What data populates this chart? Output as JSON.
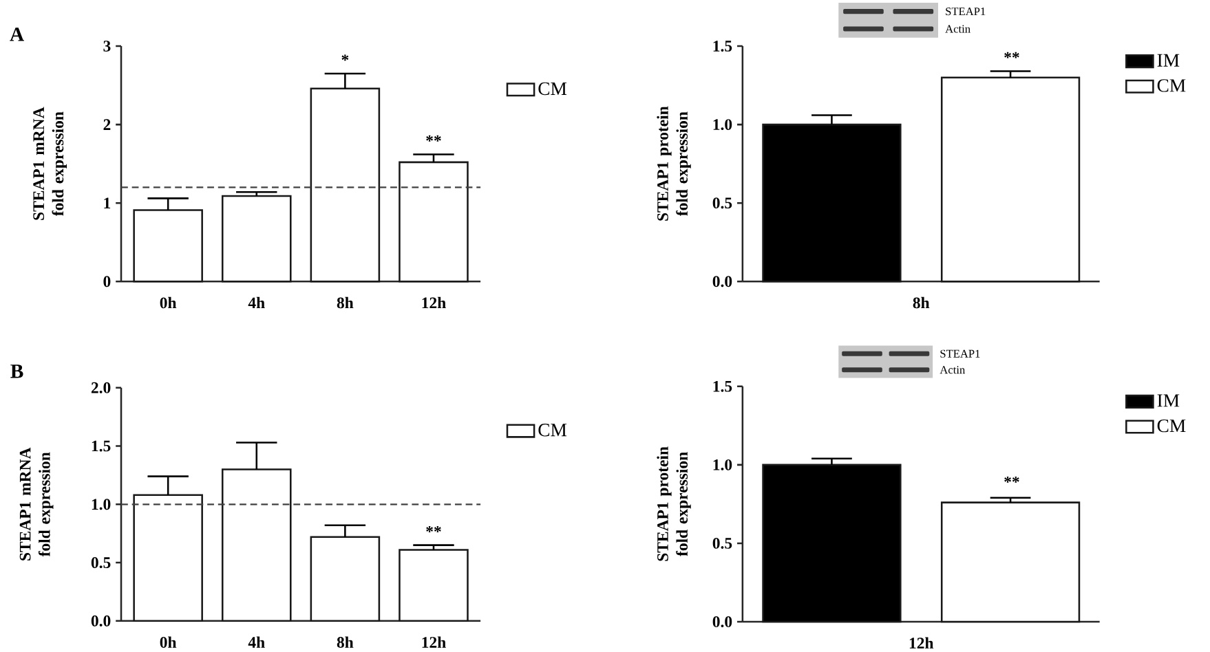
{
  "chart_data": [
    {
      "type": "bar",
      "title": "A",
      "ylabel": "STEAP1 mRNA fold expression",
      "categories": [
        "0h",
        "4h",
        "8h",
        "12h"
      ],
      "series": [
        {
          "name": "CM",
          "color": "#ffffff",
          "values": [
            0.91,
            1.09,
            2.46,
            1.52
          ],
          "errors": [
            [
              0.91,
              1.06
            ],
            [
              1.09,
              1.14
            ],
            [
              2.46,
              2.65
            ],
            [
              1.52,
              1.62
            ]
          ]
        }
      ],
      "ylim": [
        0,
        3
      ],
      "yticks": [
        0,
        1,
        2,
        3
      ],
      "ref_lines": [
        {
          "axis": "y",
          "value": 1.2,
          "line_style": "dashed",
          "color": "#404040"
        }
      ],
      "annotations": [
        {
          "text": "*",
          "x": "8h",
          "y": 2.65
        },
        {
          "text": "**",
          "x": "12h",
          "y": 1.62
        }
      ],
      "legend": "top right"
    },
    {
      "type": "bar",
      "ylabel": "STEAP1 protein fold expression",
      "categories": [
        "8h"
      ],
      "series": [
        {
          "name": "IM",
          "color": "#000000",
          "values": [
            1.0
          ],
          "errors": [
            [
              1.0,
              1.06
            ]
          ]
        },
        {
          "name": "CM",
          "color": "#ffffff",
          "values": [
            1.3
          ],
          "errors": [
            [
              1.3,
              1.34
            ]
          ]
        }
      ],
      "ylim": [
        0,
        1.5
      ],
      "yticks": [
        {
          "value": 0,
          "label": "0.0"
        },
        {
          "value": 0.5,
          "label": "0.5"
        },
        {
          "value": 1,
          "label": "1.0"
        },
        {
          "value": 1.5,
          "label": "1.5"
        }
      ],
      "annotations": [
        "STEAP1",
        "Actin",
        "**"
      ],
      "legend": "top right"
    },
    {
      "type": "bar",
      "title": "B",
      "ylabel": "STEAP1 mRNA fold expression",
      "categories": [
        "0h",
        "4h",
        "8h",
        "12h"
      ],
      "series": [
        {
          "name": "CM",
          "color": "#ffffff",
          "values": [
            1.08,
            1.3,
            0.72,
            0.61
          ],
          "errors": [
            [
              1.08,
              1.24
            ],
            [
              1.3,
              1.53
            ],
            [
              0.72,
              0.82
            ],
            [
              0.61,
              0.65
            ]
          ]
        }
      ],
      "ylim": [
        0,
        2
      ],
      "yticks": [
        {
          "value": 0,
          "label": "0.0"
        },
        {
          "value": 0.5,
          "label": "0.5"
        },
        {
          "value": 1,
          "label": "1.0"
        },
        {
          "value": 1.5,
          "label": "1.5"
        },
        {
          "value": 2,
          "label": "2.0"
        }
      ],
      "ref_lines": [
        {
          "axis": "y",
          "value": 1.0,
          "line_style": "dashed",
          "color": "#404040"
        }
      ],
      "annotations": [
        {
          "text": "**",
          "x": "12h",
          "y": 0.65
        }
      ],
      "legend": "top right"
    },
    {
      "type": "bar",
      "ylabel": "STEAP1 protein fold expression",
      "categories": [
        "12h"
      ],
      "series": [
        {
          "name": "IM",
          "color": "#000000",
          "values": [
            1.0
          ],
          "errors": [
            [
              1.0,
              1.04
            ]
          ]
        },
        {
          "name": "CM",
          "color": "#ffffff",
          "values": [
            0.76
          ],
          "errors": [
            [
              0.76,
              0.79
            ]
          ]
        }
      ],
      "ylim": [
        0,
        1.5
      ],
      "yticks": [
        {
          "value": 0,
          "label": "0.0"
        },
        {
          "value": 0.5,
          "label": "0.5"
        },
        {
          "value": 1,
          "label": "1.0"
        },
        {
          "value": 1.5,
          "label": "1.5"
        }
      ],
      "annotations": [
        "STEAP1",
        "Actin",
        "**"
      ],
      "legend": "top right"
    }
  ]
}
